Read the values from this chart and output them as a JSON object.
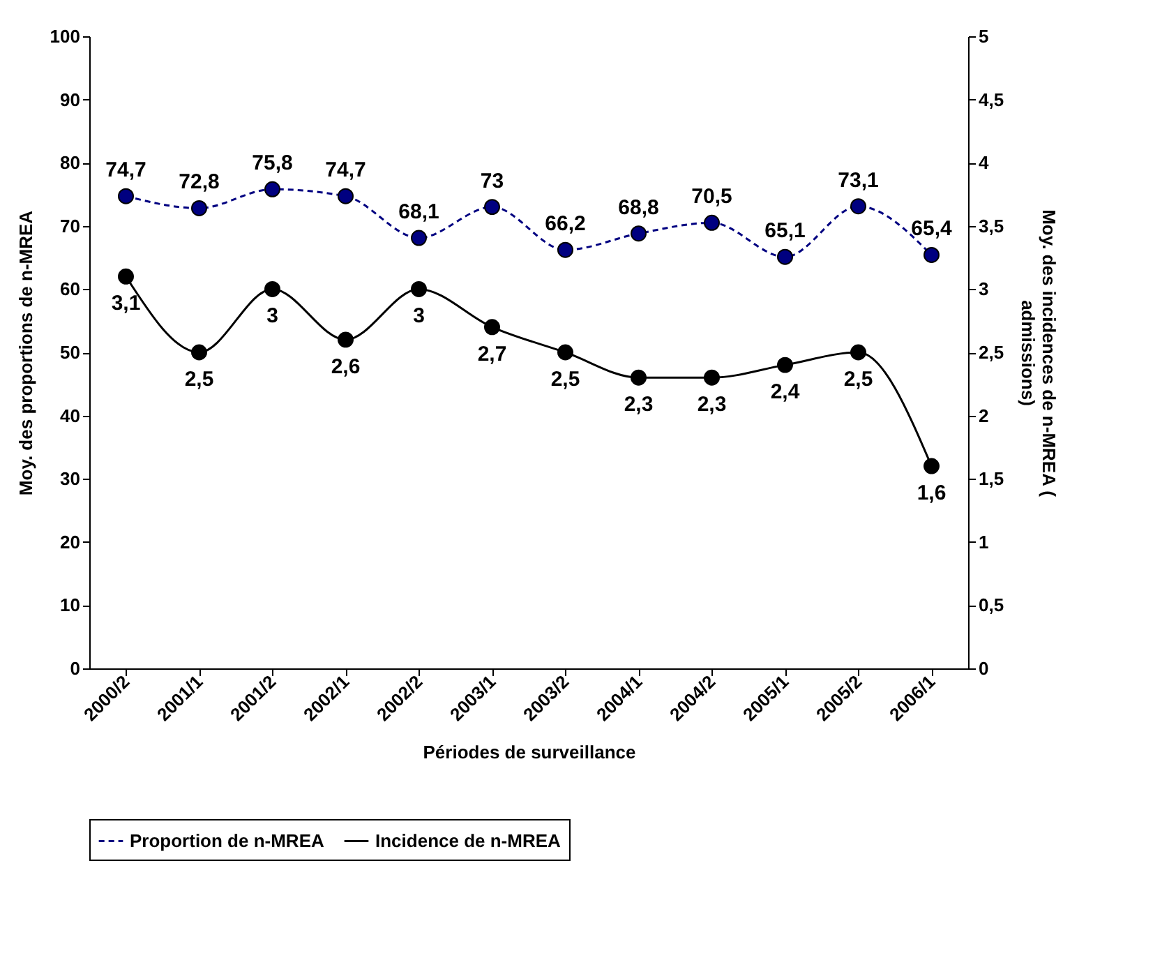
{
  "chart_data": {
    "type": "line",
    "xlabel": "Périodes de surveillance",
    "ylabel": "Moy. des proportions de n-MREA",
    "y2label": "Moy. des incidences de n-MREA (\nadmissions)",
    "categories": [
      "2000/2",
      "2001/1",
      "2001/2",
      "2002/1",
      "2002/2",
      "2003/1",
      "2003/2",
      "2004/1",
      "2004/2",
      "2005/1",
      "2005/2",
      "2006/1"
    ],
    "series": [
      {
        "name": "Proportion de n-MREA",
        "color": "#000080",
        "line_style": "dashed",
        "marker": "circle",
        "values": [
          74.7,
          72.8,
          75.8,
          74.7,
          68.1,
          73,
          66.2,
          68.8,
          70.5,
          65.1,
          73.1,
          65.4
        ],
        "value_labels": [
          "74,7",
          "72,8",
          "75,8",
          "74,7",
          "68,1",
          "73",
          "66,2",
          "68,8",
          "70,5",
          "65,1",
          "73,1",
          "65,4"
        ]
      },
      {
        "name": "Incidence de n-MREA",
        "color": "#000000",
        "line_style": "solid",
        "marker": "circle",
        "axis": "y2",
        "values": [
          3.1,
          2.5,
          3,
          2.6,
          3,
          2.7,
          2.5,
          2.3,
          2.3,
          2.4,
          2.5,
          1.6
        ],
        "value_labels": [
          "3,1",
          "2,5",
          "3",
          "2,6",
          "3",
          "2,7",
          "2,5",
          "2,3",
          "2,3",
          "2,4",
          "2,5",
          "1,6"
        ]
      }
    ],
    "ylim": [
      0,
      100
    ],
    "yticks": [
      0,
      10,
      20,
      30,
      40,
      50,
      60,
      70,
      80,
      90,
      100
    ],
    "y2lim": [
      0,
      5
    ],
    "y2ticks": [
      0,
      {
        "value": 0.5,
        "label": "0,5"
      },
      1,
      {
        "value": 1.5,
        "label": "1,5"
      },
      2,
      {
        "value": 2.5,
        "label": "2,5"
      },
      3,
      {
        "value": 3.5,
        "label": "3,5"
      },
      4,
      {
        "value": 4.5,
        "label": "4,5"
      },
      5
    ],
    "legend": "bottom",
    "grid": false
  }
}
